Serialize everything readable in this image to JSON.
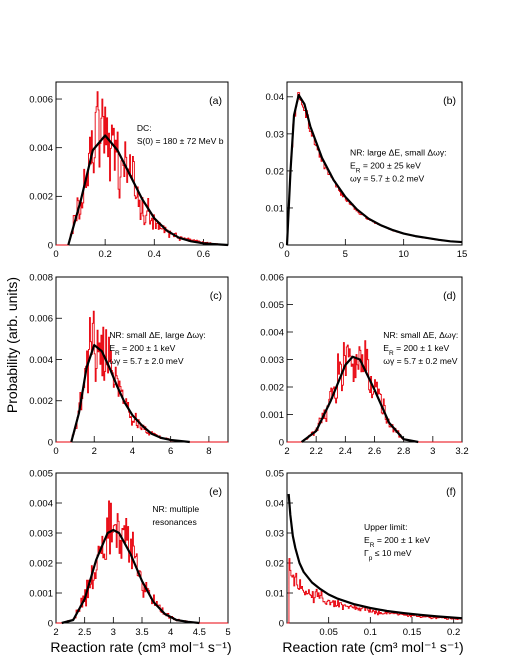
{
  "figure": {
    "y_axis_title": "Probability (arb. units)",
    "x_axis_title": "Reaction rate (cm³ mol⁻¹ s⁻¹)"
  },
  "chart_data": [
    {
      "type": "line",
      "panel": "(a)",
      "xlim": [
        0,
        0.7
      ],
      "ylim": [
        0,
        0.0067
      ],
      "xticks": [
        0,
        0.2,
        0.4,
        0.6
      ],
      "xtick_labels": [
        "0",
        "0.2",
        "0.4",
        "0.6"
      ],
      "yticks": [
        0,
        0.002,
        0.004,
        0.006
      ],
      "ytick_labels": [
        "0",
        "0.002",
        "0.004",
        "0.006"
      ],
      "annotation": [
        "DC:",
        "S(0) = 180 ± 72 MeV b"
      ],
      "series": [
        {
          "kind": "histogram",
          "color": "#e8000b",
          "x": [
            0.05,
            0.1,
            0.15,
            0.2,
            0.25,
            0.3,
            0.35,
            0.4,
            0.45,
            0.5,
            0.55,
            0.6,
            0.65,
            0.7
          ],
          "y": [
            0.0,
            0.0019,
            0.0042,
            0.0047,
            0.0038,
            0.0028,
            0.0017,
            0.001,
            0.0005,
            0.0003,
            0.0002,
            0.0001,
            5e-05,
            0.0
          ]
        },
        {
          "kind": "fit",
          "color": "#000000",
          "x": [
            0.05,
            0.1,
            0.15,
            0.2,
            0.25,
            0.3,
            0.35,
            0.4,
            0.45,
            0.5,
            0.55,
            0.6,
            0.65,
            0.7
          ],
          "y": [
            0.0,
            0.0018,
            0.0039,
            0.0045,
            0.0039,
            0.0029,
            0.0019,
            0.0011,
            0.0006,
            0.0003,
            0.00015,
            7e-05,
            3e-05,
            0.0
          ]
        }
      ]
    },
    {
      "type": "line",
      "panel": "(b)",
      "xlim": [
        0,
        15
      ],
      "ylim": [
        0,
        0.044
      ],
      "xticks": [
        0,
        5,
        10,
        15
      ],
      "xtick_labels": [
        "0",
        "5",
        "10",
        "15"
      ],
      "yticks": [
        0,
        0.01,
        0.02,
        0.03,
        0.04
      ],
      "ytick_labels": [
        "0",
        "0.01",
        "0.02",
        "0.03",
        "0.04"
      ],
      "annotation": [
        "NR: large ΔE, small Δωγ:",
        "E_R = 200 ± 25 keV",
        "ωγ = 5.7 ± 0.2 meV"
      ],
      "series": [
        {
          "kind": "histogram",
          "color": "#e8000b",
          "x": [
            0,
            0.3,
            0.6,
            1.0,
            1.5,
            2,
            3,
            4,
            5,
            6,
            7,
            8,
            9,
            10,
            11,
            12,
            13,
            14,
            15
          ],
          "y": [
            0,
            0.02,
            0.035,
            0.041,
            0.037,
            0.031,
            0.023,
            0.017,
            0.0125,
            0.0093,
            0.0069,
            0.0053,
            0.004,
            0.0031,
            0.0024,
            0.0018,
            0.0013,
            0.001,
            0.0007
          ]
        },
        {
          "kind": "fit",
          "color": "#000000",
          "x": [
            0,
            0.3,
            0.6,
            1.0,
            1.5,
            2,
            3,
            4,
            5,
            6,
            7,
            8,
            9,
            10,
            11,
            12,
            13,
            14,
            15
          ],
          "y": [
            0,
            0.02,
            0.035,
            0.0405,
            0.038,
            0.032,
            0.0235,
            0.0175,
            0.013,
            0.0096,
            0.0071,
            0.0054,
            0.0041,
            0.0031,
            0.0024,
            0.0019,
            0.0014,
            0.001,
            0.0008
          ]
        }
      ]
    },
    {
      "type": "line",
      "panel": "(c)",
      "xlim": [
        0,
        9
      ],
      "ylim": [
        0,
        0.008
      ],
      "xticks": [
        0,
        2,
        4,
        6,
        8
      ],
      "xtick_labels": [
        "0",
        "2",
        "4",
        "6",
        "8"
      ],
      "yticks": [
        0,
        0.002,
        0.004,
        0.006,
        0.008
      ],
      "ytick_labels": [
        "0",
        "0.002",
        "0.004",
        "0.006",
        "0.008"
      ],
      "annotation": [
        "NR: small ΔE, large Δωγ:",
        "E_R = 200 ± 1 keV",
        "ωγ = 5.7 ± 2.0 meV"
      ],
      "series": [
        {
          "kind": "histogram",
          "color": "#e8000b",
          "x": [
            0.8,
            1.2,
            1.6,
            2.0,
            2.4,
            2.8,
            3.2,
            3.6,
            4.0,
            4.5,
            5.0,
            5.5,
            6.0,
            7.0
          ],
          "y": [
            0.0,
            0.0015,
            0.0038,
            0.0049,
            0.0045,
            0.0036,
            0.0027,
            0.0019,
            0.0012,
            0.0007,
            0.0004,
            0.0002,
            0.0001,
            0.0
          ]
        },
        {
          "kind": "fit",
          "color": "#000000",
          "x": [
            0.8,
            1.2,
            1.6,
            2.0,
            2.4,
            2.8,
            3.2,
            3.6,
            4.0,
            4.5,
            5.0,
            5.5,
            6.0,
            7.0
          ],
          "y": [
            0.0,
            0.0014,
            0.0036,
            0.0047,
            0.0044,
            0.0036,
            0.0027,
            0.0019,
            0.0013,
            0.0008,
            0.0004,
            0.0002,
            0.0001,
            0.0
          ]
        }
      ]
    },
    {
      "type": "line",
      "panel": "(d)",
      "xlim": [
        2,
        3.2
      ],
      "ylim": [
        0,
        0.006
      ],
      "xticks": [
        2,
        2.2,
        2.4,
        2.6,
        2.8,
        3,
        3.2
      ],
      "xtick_labels": [
        "2",
        "2.2",
        "2.4",
        "2.6",
        "2.8",
        "3",
        "3.2"
      ],
      "yticks": [
        0,
        0.001,
        0.002,
        0.003,
        0.004,
        0.005,
        0.006
      ],
      "ytick_labels": [
        "0",
        "0.001",
        "0.002",
        "0.003",
        "0.004",
        "0.005",
        "0.006"
      ],
      "annotation": [
        "NR: small ΔE, Δωγ:",
        "E_R = 200 ± 1 keV",
        "ωγ = 5.7 ± 0.2 meV"
      ],
      "series": [
        {
          "kind": "histogram",
          "color": "#e8000b",
          "x": [
            2.1,
            2.2,
            2.3,
            2.4,
            2.45,
            2.5,
            2.6,
            2.7,
            2.8,
            2.9
          ],
          "y": [
            0.0,
            0.0004,
            0.0016,
            0.0029,
            0.0032,
            0.003,
            0.002,
            0.0007,
            0.0001,
            0.0
          ]
        },
        {
          "kind": "fit",
          "color": "#000000",
          "x": [
            2.1,
            2.2,
            2.3,
            2.4,
            2.45,
            2.5,
            2.6,
            2.7,
            2.8,
            2.9
          ],
          "y": [
            0.0,
            0.0004,
            0.0015,
            0.0028,
            0.0031,
            0.003,
            0.0019,
            0.0007,
            0.0001,
            0.0
          ]
        }
      ]
    },
    {
      "type": "line",
      "panel": "(e)",
      "xlim": [
        2,
        5
      ],
      "ylim": [
        0,
        0.005
      ],
      "xticks": [
        2,
        2.5,
        3,
        3.5,
        4,
        4.5,
        5
      ],
      "xtick_labels": [
        "2",
        "2.5",
        "3",
        "3.5",
        "4",
        "4.5",
        "5"
      ],
      "yticks": [
        0,
        0.001,
        0.002,
        0.003,
        0.004,
        0.005
      ],
      "ytick_labels": [
        "0",
        "0.001",
        "0.002",
        "0.003",
        "0.004",
        "0.005"
      ],
      "annotation": [
        "NR: multiple",
        "resonances"
      ],
      "series": [
        {
          "kind": "histogram",
          "color": "#e8000b",
          "x": [
            2.1,
            2.3,
            2.5,
            2.7,
            2.9,
            3.0,
            3.1,
            3.3,
            3.5,
            3.7,
            3.9,
            4.1,
            4.3,
            4.5
          ],
          "y": [
            0.0,
            0.0001,
            0.0008,
            0.002,
            0.003,
            0.0032,
            0.0031,
            0.0023,
            0.0014,
            0.0007,
            0.0003,
            0.0001,
            5e-05,
            0.0
          ]
        },
        {
          "kind": "fit",
          "color": "#000000",
          "x": [
            2.1,
            2.3,
            2.5,
            2.7,
            2.9,
            3.0,
            3.1,
            3.3,
            3.5,
            3.7,
            3.9,
            4.1,
            4.3,
            4.5
          ],
          "y": [
            0.0,
            0.0001,
            0.0008,
            0.0021,
            0.003,
            0.0031,
            0.003,
            0.0023,
            0.0014,
            0.0007,
            0.0003,
            0.0001,
            4e-05,
            0.0
          ]
        }
      ]
    },
    {
      "type": "line",
      "panel": "(f)",
      "xlim": [
        0,
        0.21
      ],
      "ylim": [
        0,
        0.05
      ],
      "xticks": [
        0.05,
        0.1,
        0.15,
        0.2
      ],
      "xtick_labels": [
        "0.05",
        "0.1",
        "0.15",
        "0.2"
      ],
      "yticks": [
        0,
        0.01,
        0.02,
        0.03,
        0.04,
        0.05
      ],
      "ytick_labels": [
        "0",
        "0.01",
        "0.02",
        "0.03",
        "0.04",
        "0.05"
      ],
      "annotation": [
        "Upper limit:",
        "E_R = 200 ± 1 keV",
        "Γ_p ≤ 10 meV"
      ],
      "series": [
        {
          "kind": "histogram",
          "color": "#e8000b",
          "x": [
            0.002,
            0.005,
            0.01,
            0.02,
            0.03,
            0.04,
            0.05,
            0.06,
            0.08,
            0.1,
            0.12,
            0.14,
            0.16,
            0.18,
            0.2,
            0.21
          ],
          "y": [
            0.02,
            0.017,
            0.014,
            0.0115,
            0.0095,
            0.0085,
            0.0072,
            0.0063,
            0.005,
            0.004,
            0.0033,
            0.0027,
            0.0022,
            0.0018,
            0.0015,
            0.0013
          ]
        },
        {
          "kind": "fit",
          "color": "#000000",
          "x": [
            0.002,
            0.004,
            0.007,
            0.01,
            0.015,
            0.02,
            0.03,
            0.04,
            0.05,
            0.06,
            0.08,
            0.1,
            0.12,
            0.14,
            0.16,
            0.18,
            0.2,
            0.21
          ],
          "y": [
            0.043,
            0.036,
            0.029,
            0.025,
            0.02,
            0.017,
            0.0135,
            0.0113,
            0.0095,
            0.0082,
            0.0063,
            0.005,
            0.004,
            0.0033,
            0.0027,
            0.0022,
            0.0018,
            0.0016
          ]
        }
      ]
    }
  ]
}
